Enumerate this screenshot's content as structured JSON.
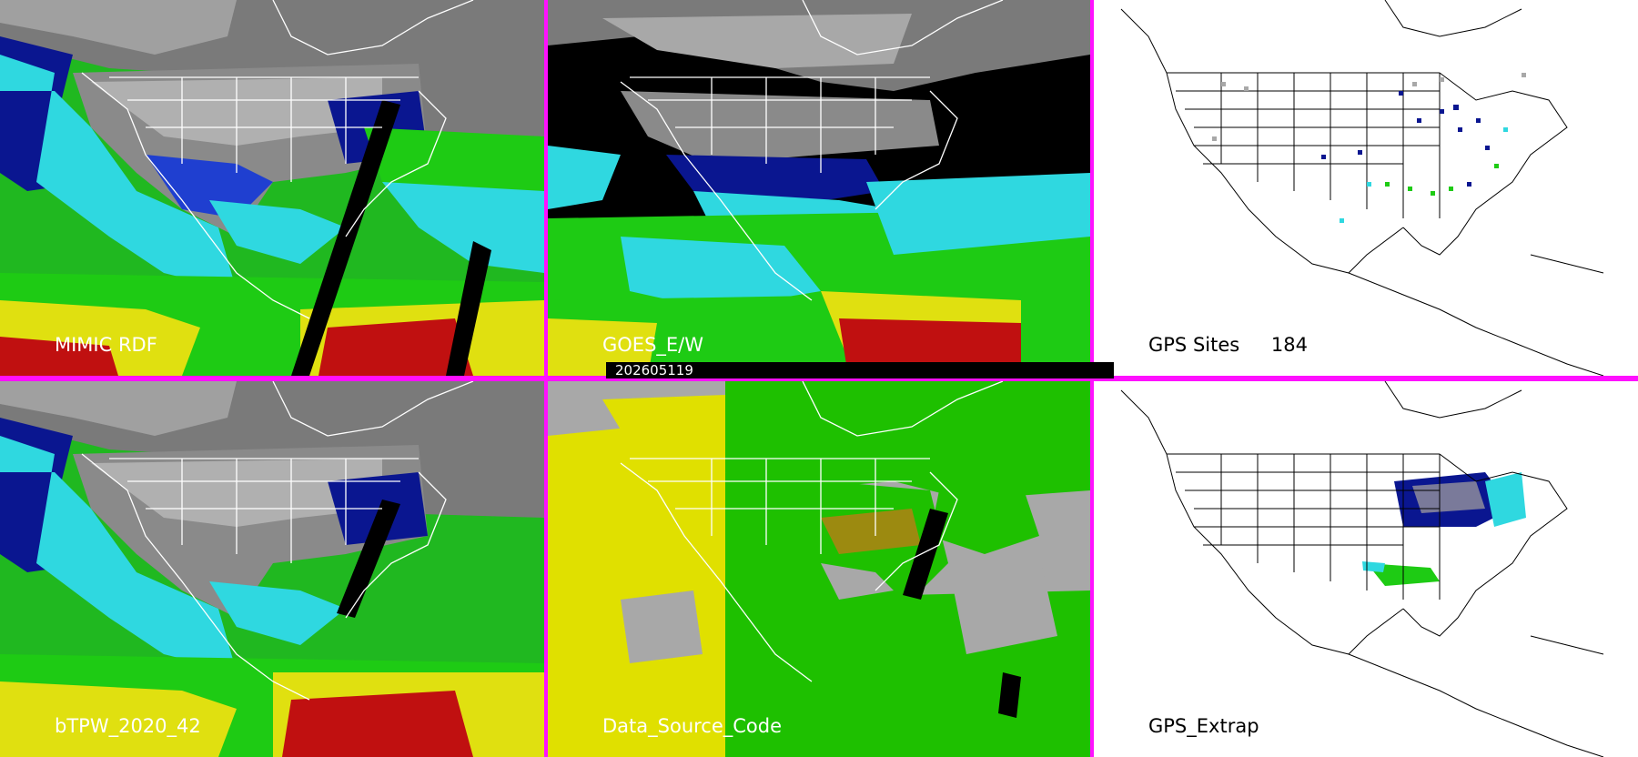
{
  "panels": {
    "mimic_rdf": {
      "label": "MIMIC RDF"
    },
    "goes_ew": {
      "label": "GOES_E/W"
    },
    "gps_sites": {
      "label": "GPS Sites",
      "count": "184"
    },
    "btpw": {
      "label": "bTPW_2020_42"
    },
    "data_source": {
      "label": "Data_Source_Code"
    },
    "gps_extrap": {
      "label": "GPS_Extrap"
    }
  },
  "timestamp": "202605119",
  "colors": {
    "divider": "#ff10ff",
    "tpw_navy": "#0a1690",
    "tpw_blue": "#1f3fd0",
    "tpw_cyan": "#2fd8e0",
    "tpw_green": "#1ecb14",
    "tpw_yellow": "#e0e010",
    "tpw_red": "#c01010",
    "src_gray": "#a8a8a8",
    "src_yellow": "#e0e000",
    "src_green": "#1ec000",
    "src_olive": "#9c8a10"
  }
}
